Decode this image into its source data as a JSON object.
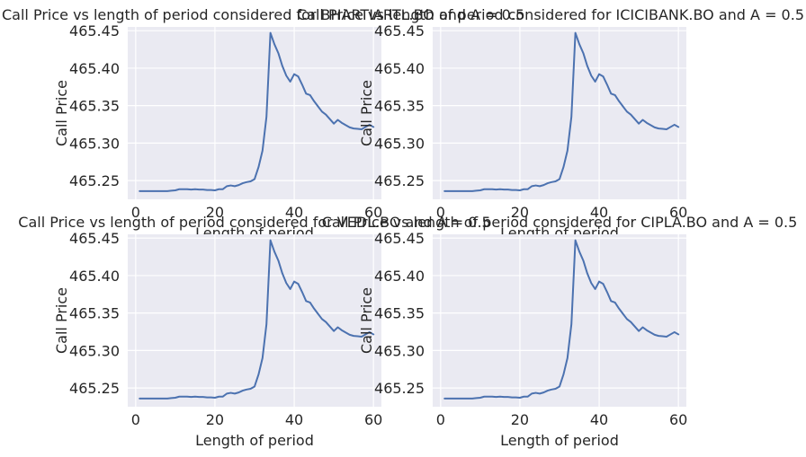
{
  "series_color": "#4c72b0",
  "chart_data": [
    {
      "type": "line",
      "title": "Call Price vs length of period considered for BHARTIARTL.BO and A = 0.5",
      "xlabel": "Length of period",
      "ylabel": "Call Price",
      "xlim": [
        -2,
        62
      ],
      "ylim": [
        465.225,
        465.455
      ],
      "xticks": [
        0,
        20,
        40,
        60
      ],
      "yticks": [
        465.25,
        465.3,
        465.35,
        465.4,
        465.45
      ],
      "grid": true,
      "series": [
        {
          "x": [
            1,
            2,
            3,
            4,
            5,
            6,
            7,
            8,
            9,
            10,
            11,
            12,
            13,
            14,
            15,
            16,
            17,
            18,
            19,
            20,
            21,
            22,
            23,
            24,
            25,
            26,
            27,
            28,
            29,
            30,
            31,
            32,
            33,
            34,
            35,
            36,
            37,
            38,
            39,
            40,
            41,
            42,
            43,
            44,
            45,
            46,
            47,
            48,
            49,
            50,
            51,
            52,
            53,
            54,
            55,
            56,
            57,
            58,
            59,
            60
          ],
          "y": [
            465.236,
            465.236,
            465.236,
            465.236,
            465.236,
            465.236,
            465.236,
            465.236,
            465.2365,
            465.237,
            465.2385,
            465.2385,
            465.2385,
            465.238,
            465.2385,
            465.238,
            465.238,
            465.2375,
            465.2375,
            465.237,
            465.2385,
            465.2385,
            465.2425,
            465.2435,
            465.2425,
            465.244,
            465.2465,
            465.248,
            465.249,
            465.252,
            465.268,
            465.29,
            465.335,
            465.447,
            465.432,
            465.42,
            465.403,
            465.39,
            465.382,
            465.392,
            465.389,
            465.378,
            465.366,
            465.364,
            465.356,
            465.349,
            465.342,
            465.338,
            465.332,
            465.326,
            465.331,
            465.327,
            465.324,
            465.321,
            465.3195,
            465.319,
            465.3185,
            465.3215,
            465.3245,
            465.3215
          ]
        }
      ]
    },
    {
      "type": "line",
      "title": "Call Price vs length of period considered for ICICIBANK.BO and A = 0.5",
      "xlabel": "Length of period",
      "ylabel": "Call Price",
      "xlim": [
        -2,
        62
      ],
      "ylim": [
        465.225,
        465.455
      ],
      "xticks": [
        0,
        20,
        40,
        60
      ],
      "yticks": [
        465.25,
        465.3,
        465.35,
        465.4,
        465.45
      ],
      "grid": true,
      "series": [
        {
          "x": [
            1,
            2,
            3,
            4,
            5,
            6,
            7,
            8,
            9,
            10,
            11,
            12,
            13,
            14,
            15,
            16,
            17,
            18,
            19,
            20,
            21,
            22,
            23,
            24,
            25,
            26,
            27,
            28,
            29,
            30,
            31,
            32,
            33,
            34,
            35,
            36,
            37,
            38,
            39,
            40,
            41,
            42,
            43,
            44,
            45,
            46,
            47,
            48,
            49,
            50,
            51,
            52,
            53,
            54,
            55,
            56,
            57,
            58,
            59,
            60
          ],
          "y": [
            465.236,
            465.236,
            465.236,
            465.236,
            465.236,
            465.236,
            465.236,
            465.236,
            465.2365,
            465.237,
            465.2385,
            465.2385,
            465.2385,
            465.238,
            465.2385,
            465.238,
            465.238,
            465.2375,
            465.2375,
            465.237,
            465.2385,
            465.2385,
            465.2425,
            465.2435,
            465.2425,
            465.244,
            465.2465,
            465.248,
            465.249,
            465.252,
            465.268,
            465.29,
            465.335,
            465.447,
            465.432,
            465.42,
            465.403,
            465.39,
            465.382,
            465.392,
            465.389,
            465.378,
            465.366,
            465.364,
            465.356,
            465.349,
            465.342,
            465.338,
            465.332,
            465.326,
            465.331,
            465.327,
            465.324,
            465.321,
            465.3195,
            465.319,
            465.3185,
            465.3215,
            465.3245,
            465.3215
          ]
        }
      ]
    },
    {
      "type": "line",
      "title": "Call Price vs length of period considered for VEDL.BO and A = 0.5",
      "xlabel": "Length of period",
      "ylabel": "Call Price",
      "xlim": [
        -2,
        62
      ],
      "ylim": [
        465.225,
        465.455
      ],
      "xticks": [
        0,
        20,
        40,
        60
      ],
      "yticks": [
        465.25,
        465.3,
        465.35,
        465.4,
        465.45
      ],
      "grid": true,
      "series": [
        {
          "x": [
            1,
            2,
            3,
            4,
            5,
            6,
            7,
            8,
            9,
            10,
            11,
            12,
            13,
            14,
            15,
            16,
            17,
            18,
            19,
            20,
            21,
            22,
            23,
            24,
            25,
            26,
            27,
            28,
            29,
            30,
            31,
            32,
            33,
            34,
            35,
            36,
            37,
            38,
            39,
            40,
            41,
            42,
            43,
            44,
            45,
            46,
            47,
            48,
            49,
            50,
            51,
            52,
            53,
            54,
            55,
            56,
            57,
            58,
            59,
            60
          ],
          "y": [
            465.236,
            465.236,
            465.236,
            465.236,
            465.236,
            465.236,
            465.236,
            465.236,
            465.2365,
            465.237,
            465.2385,
            465.2385,
            465.2385,
            465.238,
            465.2385,
            465.238,
            465.238,
            465.2375,
            465.2375,
            465.237,
            465.2385,
            465.2385,
            465.2425,
            465.2435,
            465.2425,
            465.244,
            465.2465,
            465.248,
            465.249,
            465.252,
            465.268,
            465.29,
            465.335,
            465.447,
            465.432,
            465.42,
            465.403,
            465.39,
            465.382,
            465.392,
            465.389,
            465.378,
            465.366,
            465.364,
            465.356,
            465.349,
            465.342,
            465.338,
            465.332,
            465.326,
            465.331,
            465.327,
            465.324,
            465.321,
            465.3195,
            465.319,
            465.3185,
            465.3215,
            465.3245,
            465.3215
          ]
        }
      ]
    },
    {
      "type": "line",
      "title": "Call Price vs length of period considered for CIPLA.BO and A = 0.5",
      "xlabel": "Length of period",
      "ylabel": "Call Price",
      "xlim": [
        -2,
        62
      ],
      "ylim": [
        465.225,
        465.455
      ],
      "xticks": [
        0,
        20,
        40,
        60
      ],
      "yticks": [
        465.25,
        465.3,
        465.35,
        465.4,
        465.45
      ],
      "grid": true,
      "series": [
        {
          "x": [
            1,
            2,
            3,
            4,
            5,
            6,
            7,
            8,
            9,
            10,
            11,
            12,
            13,
            14,
            15,
            16,
            17,
            18,
            19,
            20,
            21,
            22,
            23,
            24,
            25,
            26,
            27,
            28,
            29,
            30,
            31,
            32,
            33,
            34,
            35,
            36,
            37,
            38,
            39,
            40,
            41,
            42,
            43,
            44,
            45,
            46,
            47,
            48,
            49,
            50,
            51,
            52,
            53,
            54,
            55,
            56,
            57,
            58,
            59,
            60
          ],
          "y": [
            465.236,
            465.236,
            465.236,
            465.236,
            465.236,
            465.236,
            465.236,
            465.236,
            465.2365,
            465.237,
            465.2385,
            465.2385,
            465.2385,
            465.238,
            465.2385,
            465.238,
            465.238,
            465.2375,
            465.2375,
            465.237,
            465.2385,
            465.2385,
            465.2425,
            465.2435,
            465.2425,
            465.244,
            465.2465,
            465.248,
            465.249,
            465.252,
            465.268,
            465.29,
            465.335,
            465.447,
            465.432,
            465.42,
            465.403,
            465.39,
            465.382,
            465.392,
            465.389,
            465.378,
            465.366,
            465.364,
            465.356,
            465.349,
            465.342,
            465.338,
            465.332,
            465.326,
            465.331,
            465.327,
            465.324,
            465.321,
            465.3195,
            465.319,
            465.3185,
            465.3215,
            465.3245,
            465.3215
          ]
        }
      ]
    }
  ]
}
